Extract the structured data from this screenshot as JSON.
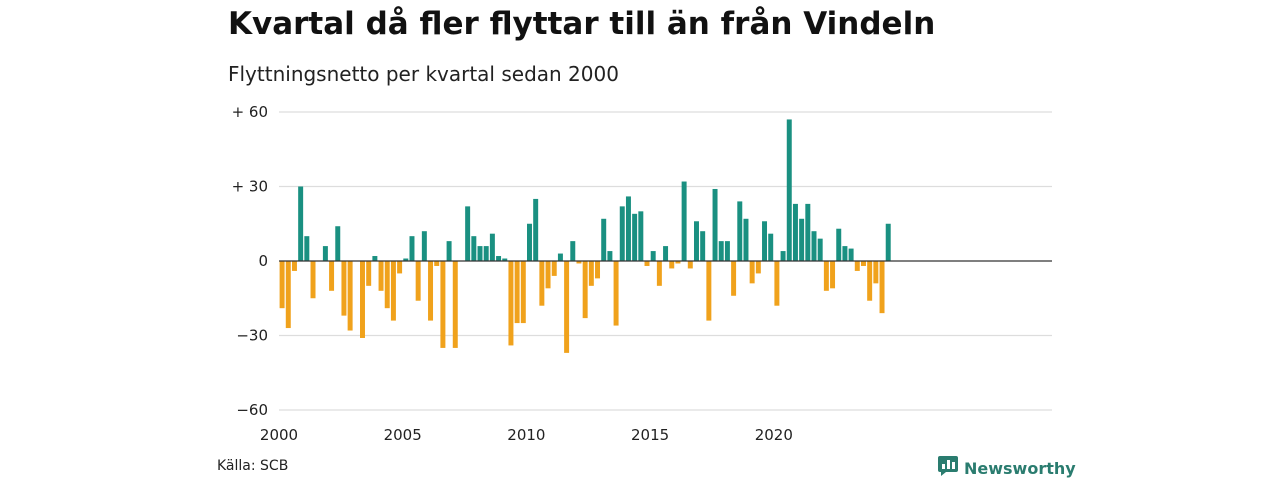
{
  "title": "Kvartal då fler flyttar till än från Vindeln",
  "subtitle": "Flyttningsnetto per kvartal sedan 2000",
  "source": "Källa: SCB",
  "brand": "Newsworthy",
  "colors": {
    "positive": "#1a9081",
    "negative": "#f0a21c",
    "grid": "#dddddd",
    "zero": "#333333",
    "brand": "#2a7c6f"
  },
  "chart_data": {
    "type": "bar",
    "title": "Kvartal då fler flyttar till än från Vindeln",
    "subtitle": "Flyttningsnetto per kvartal sedan 2000",
    "ylim": [
      -60,
      60
    ],
    "yticks": [
      60,
      30,
      0,
      -30,
      -60
    ],
    "ytick_labels": [
      "+ 60",
      "+ 30",
      "0",
      "−30",
      "−60"
    ],
    "xticks": [
      2000,
      2005,
      2010,
      2015,
      2020
    ],
    "grid": true,
    "series": [
      {
        "start_year": 2000,
        "values": [
          -19,
          -27,
          -4,
          30,
          10,
          -15,
          0,
          6,
          -12,
          14,
          -22,
          -28,
          0,
          -31,
          -10,
          2,
          -12,
          -19,
          -24,
          -5,
          1,
          10,
          -16,
          12,
          -24,
          -2,
          -35,
          8,
          -35,
          0,
          22,
          10,
          6,
          6,
          11,
          2,
          1,
          -34,
          -25,
          -25,
          15,
          25,
          -18,
          -11,
          -6,
          3,
          -37,
          8,
          -1,
          -23,
          -10,
          -7,
          17,
          4,
          -26,
          22,
          26,
          19,
          20,
          -2,
          4,
          -10,
          6,
          -3,
          -1,
          32,
          -3,
          16,
          12,
          -24,
          29,
          8,
          8,
          -14,
          24,
          17,
          -9,
          -5,
          16,
          11,
          -18,
          4,
          57,
          23,
          17,
          23,
          12,
          9,
          -12,
          -11,
          13,
          6,
          5,
          -4,
          -2,
          -16,
          -9,
          -21,
          15
        ]
      }
    ]
  }
}
